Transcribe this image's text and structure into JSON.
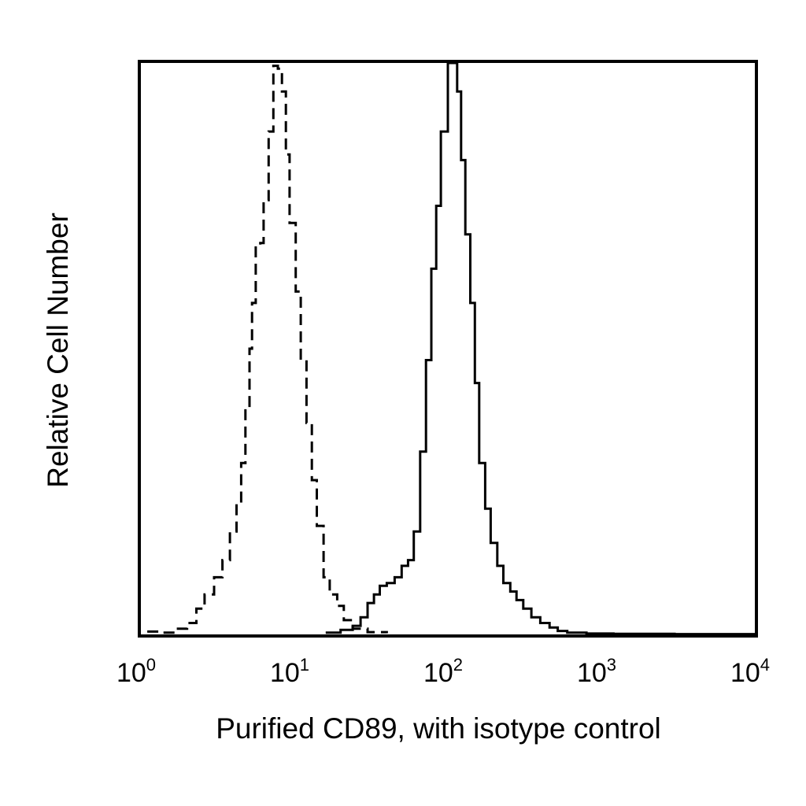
{
  "chart_data": {
    "type": "line",
    "xlabel": "Purified CD89, with isotype control",
    "ylabel": "Relative Cell Number",
    "x_scale": "log",
    "xlim": [
      1,
      10000
    ],
    "ylim": [
      0,
      100
    ],
    "grid": false,
    "legend": "none",
    "x_ticks": [
      {
        "value": 1,
        "base": "10",
        "exp": "0"
      },
      {
        "value": 10,
        "base": "10",
        "exp": "1"
      },
      {
        "value": 100,
        "base": "10",
        "exp": "2"
      },
      {
        "value": 1000,
        "base": "10",
        "exp": "3"
      },
      {
        "value": 10000,
        "base": "10",
        "exp": "4"
      }
    ],
    "series": [
      {
        "style": "dashed",
        "color": "#000000",
        "x": [
          1.1,
          1.35,
          1.7,
          2.0,
          2.3,
          2.6,
          3.0,
          3.4,
          3.8,
          4.2,
          4.5,
          4.8,
          5.1,
          5.3,
          5.6,
          6.0,
          6.3,
          6.8,
          7.3,
          7.8,
          8.3,
          8.8,
          9.3,
          10.2,
          11.0,
          12.0,
          13.0,
          14.0,
          15.5,
          17.0,
          19.0,
          21.0,
          24.0,
          30.0,
          40.0
        ],
        "y": [
          0.5,
          0.3,
          1.0,
          2.0,
          4.5,
          7.0,
          10.0,
          13.0,
          18.0,
          23.0,
          30.0,
          40.0,
          50.0,
          58.0,
          68.0,
          68.5,
          76.0,
          88.0,
          99.5,
          99.0,
          95.0,
          84.0,
          72.0,
          60.0,
          48.0,
          37.0,
          27.0,
          19.0,
          10.0,
          7.0,
          5.0,
          2.5,
          1.0,
          0.4,
          0.2
        ]
      },
      {
        "style": "solid",
        "color": "#000000",
        "x": [
          16.0,
          20.0,
          24.0,
          27.0,
          30.0,
          33.0,
          36.0,
          40.0,
          45.0,
          50.0,
          55.0,
          60.0,
          66.0,
          72.0,
          78.0,
          84.0,
          90.0,
          100.0,
          108.0,
          115.0,
          122.0,
          130.0,
          140.0,
          150.0,
          160.0,
          175.0,
          190.0,
          210.0,
          230.0,
          255.0,
          280.0,
          310.0,
          350.0,
          400.0,
          460.0,
          520.0,
          600.0,
          800.0,
          1200.0,
          3000.0,
          10000.0
        ],
        "y": [
          0.3,
          0.8,
          1.5,
          3.0,
          5.5,
          7.0,
          8.5,
          9.0,
          10.0,
          12.0,
          13.0,
          18.0,
          32.0,
          48.0,
          64.0,
          75.0,
          88.0,
          100.0,
          100.0,
          95.0,
          83.0,
          70.0,
          58.0,
          44.0,
          30.0,
          22.0,
          16.0,
          12.0,
          9.0,
          7.5,
          6.0,
          4.5,
          3.0,
          2.0,
          1.2,
          0.6,
          0.3,
          0.15,
          0.1,
          0.05,
          0.0
        ]
      }
    ]
  }
}
